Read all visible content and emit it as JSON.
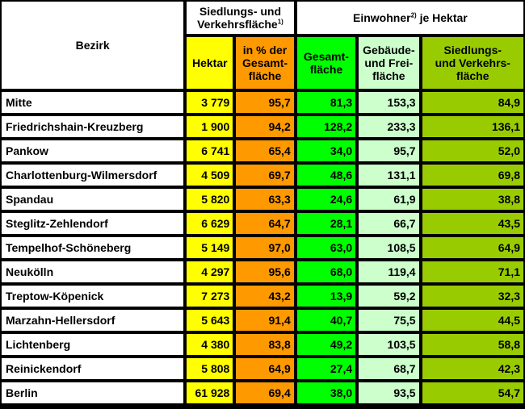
{
  "header": {
    "bezirk": "Bezirk",
    "flaeche_line1": "Siedlungs- und",
    "flaeche_line2": "Verkehrsfläche",
    "flaeche_note": "1)",
    "einwohner_prefix": "Einwohner",
    "einwohner_note": "2)",
    "einwohner_suffix": " je Hektar",
    "hektar": "Hektar",
    "pct_line1": "in % der",
    "pct_line2": "Gesamt-",
    "pct_line3": "fläche",
    "ges_line1": "Gesamt-",
    "ges_line2": "fläche",
    "geb_line1": "Gebäude-",
    "geb_line2": "und Frei-",
    "geb_line3": "fläche",
    "sv_line1": "Siedlungs-",
    "sv_line2": "und Verkehrs-",
    "sv_line3": "fläche"
  },
  "rows": [
    {
      "name": "Mitte",
      "hektar": "3 779",
      "pct": "95,7",
      "ges": "81,3",
      "geb": "153,3",
      "sv": "84,9"
    },
    {
      "name": "Friedrichshain-Kreuzberg",
      "hektar": "1 900",
      "pct": "94,2",
      "ges": "128,2",
      "geb": "233,3",
      "sv": "136,1"
    },
    {
      "name": "Pankow",
      "hektar": "6 741",
      "pct": "65,4",
      "ges": "34,0",
      "geb": "95,7",
      "sv": "52,0"
    },
    {
      "name": "Charlottenburg-Wilmersdorf",
      "hektar": "4 509",
      "pct": "69,7",
      "ges": "48,6",
      "geb": "131,1",
      "sv": "69,8"
    },
    {
      "name": "Spandau",
      "hektar": "5 820",
      "pct": "63,3",
      "ges": "24,6",
      "geb": "61,9",
      "sv": "38,8"
    },
    {
      "name": "Steglitz-Zehlendorf",
      "hektar": "6 629",
      "pct": "64,7",
      "ges": "28,1",
      "geb": "66,7",
      "sv": "43,5"
    },
    {
      "name": "Tempelhof-Schöneberg",
      "hektar": "5 149",
      "pct": "97,0",
      "ges": "63,0",
      "geb": "108,5",
      "sv": "64,9"
    },
    {
      "name": "Neukölln",
      "hektar": "4 297",
      "pct": "95,6",
      "ges": "68,0",
      "geb": "119,4",
      "sv": "71,1"
    },
    {
      "name": "Treptow-Köpenick",
      "hektar": "7 273",
      "pct": "43,2",
      "ges": "13,9",
      "geb": "59,2",
      "sv": "32,3"
    },
    {
      "name": "Marzahn-Hellersdorf",
      "hektar": "5 643",
      "pct": "91,4",
      "ges": "40,7",
      "geb": "75,5",
      "sv": "44,5"
    },
    {
      "name": "Lichtenberg",
      "hektar": "4 380",
      "pct": "83,8",
      "ges": "49,2",
      "geb": "103,5",
      "sv": "58,8"
    },
    {
      "name": "Reinickendorf",
      "hektar": "5 808",
      "pct": "64,9",
      "ges": "27,4",
      "geb": "68,7",
      "sv": "42,3"
    },
    {
      "name": "Berlin",
      "hektar": "61 928",
      "pct": "69,4",
      "ges": "38,0",
      "geb": "93,5",
      "sv": "54,7"
    }
  ],
  "colors": {
    "yellow": "#ffff00",
    "orange": "#ff9900",
    "green": "#00ff00",
    "light_green": "#ccffcc",
    "olive": "#99cc00",
    "border": "#000000"
  }
}
